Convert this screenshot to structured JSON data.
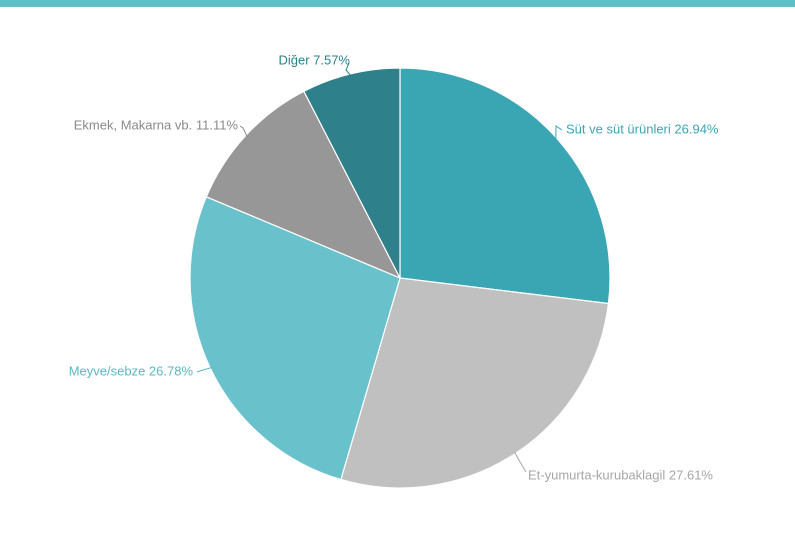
{
  "theme": {
    "top_bar_color": "#5fbfc6",
    "background": "#ffffff"
  },
  "chart_data": {
    "type": "pie",
    "slices": [
      {
        "label": "Süt ve süt ürünleri 26.94%",
        "name": "Süt ve süt ürünleri",
        "value": 26.94,
        "color": "#3aa6b4",
        "label_color": "#3aa6b4"
      },
      {
        "label": "Et-yumurta-kurubaklagil 27.61%",
        "name": "Et-yumurta-kurubaklagil",
        "value": 27.61,
        "color": "#c0c0c0",
        "label_color": "#a6a6a6"
      },
      {
        "label": "Meyve/sebze 26.78%",
        "name": "Meyve/sebze",
        "value": 26.78,
        "color": "#69c1cc",
        "label_color": "#59b8c4"
      },
      {
        "label": "Ekmek, Makarna vb. 11.11%",
        "name": "Ekmek, Makarna vb.",
        "value": 11.11,
        "color": "#979797",
        "label_color": "#8a8a8a"
      },
      {
        "label": "Diğer 7.57%",
        "name": "Diğer",
        "value": 7.57,
        "color": "#2e808a",
        "label_color": "#2e808a"
      }
    ],
    "start_angle_deg": 0,
    "direction": "clockwise",
    "legend": "none"
  }
}
